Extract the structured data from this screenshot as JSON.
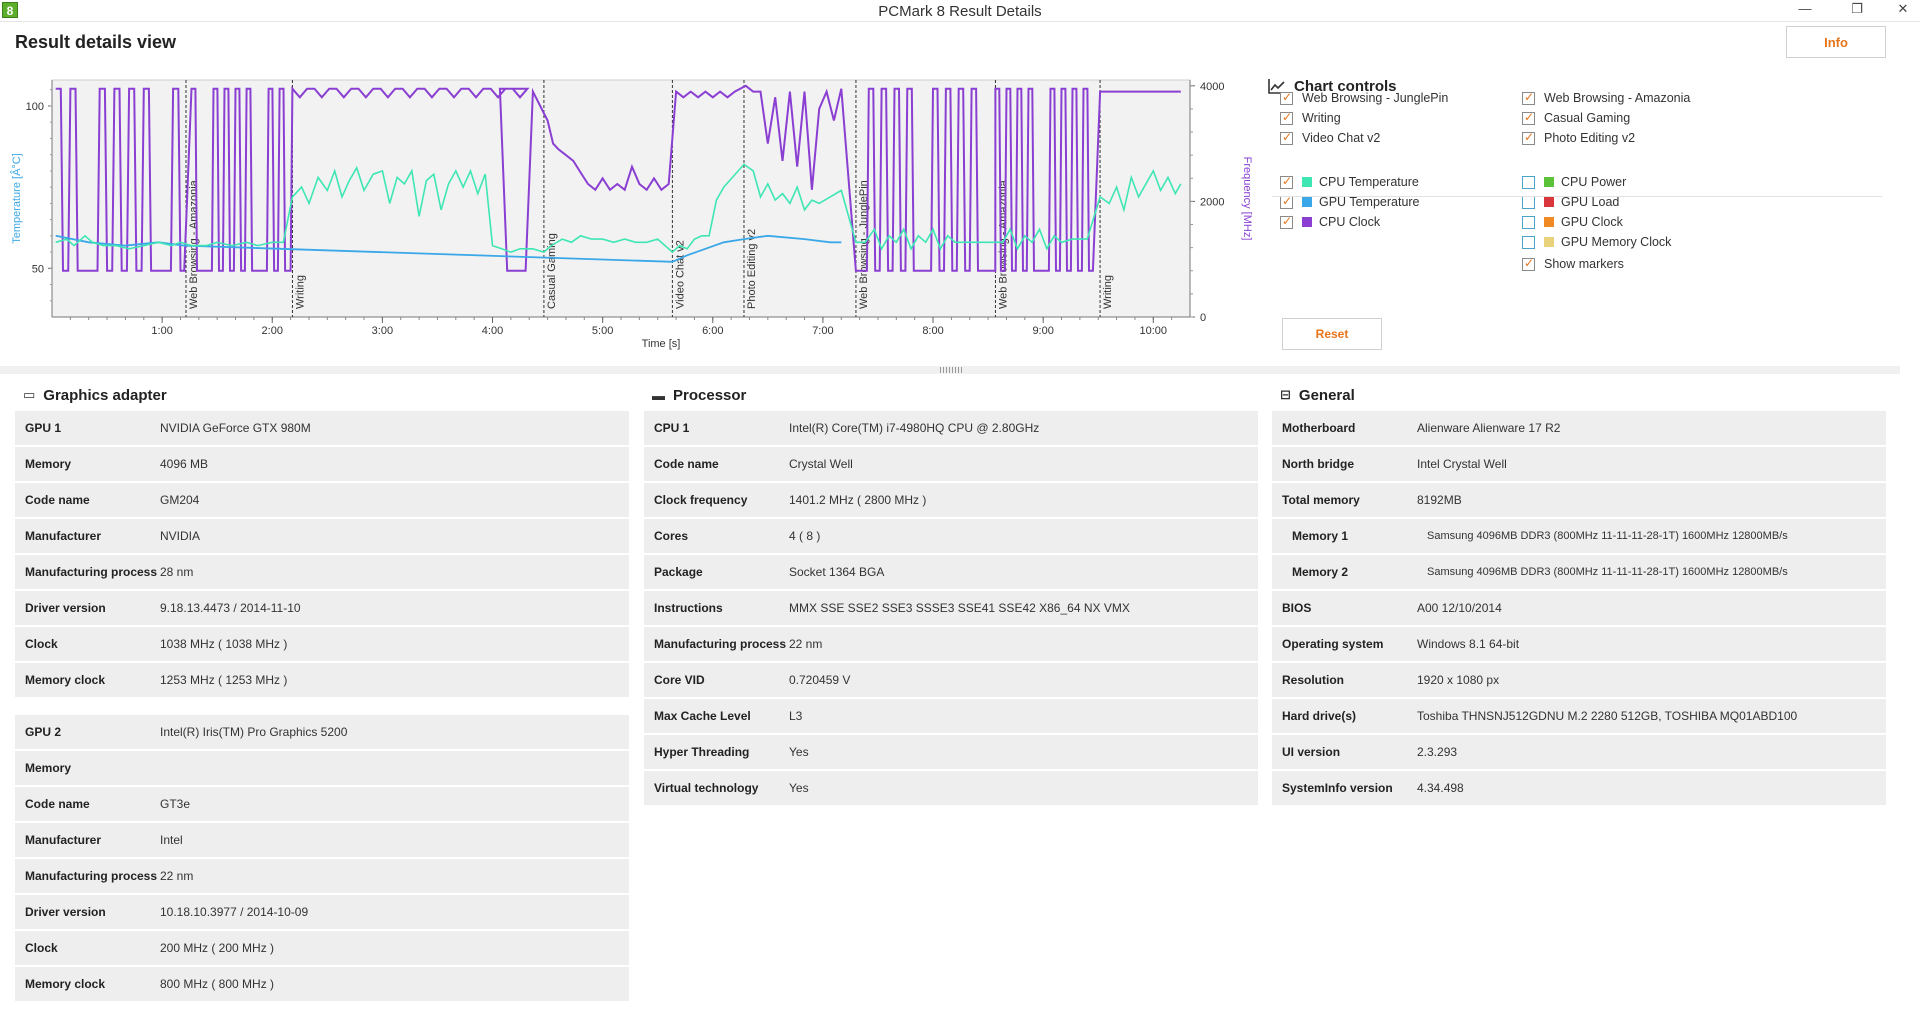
{
  "window": {
    "title": "PCMark 8 Result Details",
    "app_icon": "8"
  },
  "page_title": "Result details view",
  "info_button": "Info",
  "chart_data": {
    "type": "line",
    "xlabel": "Time [s]",
    "ylabel_left": "Temperature [Â°C]",
    "ylabel_right": "Frequency [MHz]",
    "x_ticks": [
      "1:00",
      "2:00",
      "3:00",
      "4:00",
      "5:00",
      "6:00",
      "7:00",
      "8:00",
      "9:00",
      "10:00"
    ],
    "y_left_ticks": [
      "50",
      "100"
    ],
    "y_right_ticks": [
      "0",
      "2000",
      "4000"
    ],
    "xlim_seconds": [
      0,
      620
    ],
    "ylim_left": [
      35,
      108
    ],
    "ylim_right": [
      0,
      4100
    ],
    "segments": [
      {
        "name": "Web Browsing - Amazonia",
        "start": 73
      },
      {
        "name": "Writing",
        "start": 131
      },
      {
        "name": "Casual Gaming",
        "start": 268
      },
      {
        "name": "Video Chat v2",
        "start": 338
      },
      {
        "name": "Photo Editing v2",
        "start": 377
      },
      {
        "name": "Web Browsing - JunglePin",
        "start": 438
      },
      {
        "name": "Web Browsing - Amazonia",
        "start": 514
      },
      {
        "name": "Writing",
        "start": 571
      }
    ],
    "series": [
      {
        "name": "CPU Temperature",
        "color": "#3ee6b4",
        "points": [
          [
            2,
            58
          ],
          [
            8,
            59
          ],
          [
            12,
            57
          ],
          [
            18,
            60
          ],
          [
            22,
            58
          ],
          [
            28,
            57
          ],
          [
            35,
            57
          ],
          [
            42,
            56
          ],
          [
            50,
            57
          ],
          [
            58,
            58
          ],
          [
            65,
            57
          ],
          [
            70,
            58
          ],
          [
            76,
            57
          ],
          [
            84,
            57
          ],
          [
            90,
            58
          ],
          [
            98,
            57
          ],
          [
            106,
            58
          ],
          [
            112,
            57
          ],
          [
            120,
            58
          ],
          [
            126,
            58
          ],
          [
            131,
            72
          ],
          [
            136,
            75
          ],
          [
            140,
            70
          ],
          [
            145,
            78
          ],
          [
            150,
            74
          ],
          [
            154,
            80
          ],
          [
            158,
            72
          ],
          [
            162,
            77
          ],
          [
            166,
            81
          ],
          [
            170,
            74
          ],
          [
            175,
            79
          ],
          [
            180,
            80
          ],
          [
            184,
            70
          ],
          [
            188,
            78
          ],
          [
            192,
            76
          ],
          [
            196,
            80
          ],
          [
            200,
            66
          ],
          [
            204,
            77
          ],
          [
            208,
            79
          ],
          [
            212,
            68
          ],
          [
            216,
            76
          ],
          [
            220,
            80
          ],
          [
            224,
            75
          ],
          [
            228,
            80
          ],
          [
            232,
            73
          ],
          [
            236,
            79
          ],
          [
            240,
            57
          ],
          [
            245,
            56
          ],
          [
            250,
            55
          ],
          [
            255,
            56
          ],
          [
            262,
            56
          ],
          [
            268,
            55
          ],
          [
            272,
            57
          ],
          [
            278,
            59
          ],
          [
            283,
            58
          ],
          [
            288,
            60
          ],
          [
            294,
            59
          ],
          [
            300,
            59
          ],
          [
            306,
            58
          ],
          [
            312,
            59
          ],
          [
            318,
            58
          ],
          [
            324,
            58
          ],
          [
            330,
            59
          ],
          [
            338,
            55
          ],
          [
            342,
            57
          ],
          [
            346,
            56
          ],
          [
            350,
            59
          ],
          [
            354,
            60
          ],
          [
            358,
            60
          ],
          [
            362,
            71
          ],
          [
            366,
            75
          ],
          [
            377,
            82
          ],
          [
            382,
            80
          ],
          [
            386,
            72
          ],
          [
            390,
            76
          ],
          [
            394,
            71
          ],
          [
            398,
            73
          ],
          [
            402,
            70
          ],
          [
            406,
            75
          ],
          [
            410,
            68
          ],
          [
            414,
            71
          ],
          [
            418,
            70
          ],
          [
            424,
            72
          ],
          [
            430,
            74
          ],
          [
            438,
            58
          ],
          [
            443,
            58
          ],
          [
            448,
            62
          ],
          [
            452,
            56
          ],
          [
            456,
            60
          ],
          [
            460,
            58
          ],
          [
            464,
            62
          ],
          [
            468,
            56
          ],
          [
            472,
            60
          ],
          [
            476,
            58
          ],
          [
            480,
            62
          ],
          [
            484,
            56
          ],
          [
            488,
            60
          ],
          [
            492,
            58
          ],
          [
            500,
            58
          ],
          [
            508,
            58
          ],
          [
            514,
            58
          ],
          [
            518,
            58
          ],
          [
            522,
            62
          ],
          [
            526,
            56
          ],
          [
            530,
            60
          ],
          [
            534,
            58
          ],
          [
            538,
            62
          ],
          [
            542,
            56
          ],
          [
            546,
            60
          ],
          [
            550,
            58
          ],
          [
            556,
            59
          ],
          [
            564,
            59
          ],
          [
            571,
            72
          ],
          [
            576,
            70
          ],
          [
            580,
            75
          ],
          [
            584,
            68
          ],
          [
            588,
            78
          ],
          [
            592,
            72
          ],
          [
            596,
            76
          ],
          [
            600,
            80
          ],
          [
            604,
            74
          ],
          [
            608,
            78
          ],
          [
            612,
            73
          ],
          [
            615,
            76
          ]
        ]
      },
      {
        "name": "GPU Temperature",
        "color": "#3aa8e8",
        "points": [
          [
            2,
            60
          ],
          [
            20,
            58
          ],
          [
            40,
            57
          ],
          [
            58,
            58
          ],
          [
            72,
            57
          ],
          [
            338,
            52
          ],
          [
            346,
            54
          ],
          [
            356,
            56
          ],
          [
            366,
            58
          ],
          [
            377,
            59
          ],
          [
            390,
            60
          ],
          [
            410,
            59
          ],
          [
            424,
            58
          ],
          [
            430,
            58
          ]
        ]
      },
      {
        "name": "CPU Clock",
        "color": "#8a3fd2",
        "pattern": "oscillates between roughly 800 MHz and 3900 MHz during browsing, about 3900 MHz during Writing, 1900-3400 MHz during Casual Gaming"
      }
    ]
  },
  "controls": {
    "title": "Chart controls",
    "workloads": [
      {
        "label": "Web Browsing - JunglePin",
        "checked": true
      },
      {
        "label": "Web Browsing - Amazonia",
        "checked": true
      },
      {
        "label": "Writing",
        "checked": true
      },
      {
        "label": "Casual Gaming",
        "checked": true
      },
      {
        "label": "Video Chat v2",
        "checked": true
      },
      {
        "label": "Photo Editing v2",
        "checked": true
      }
    ],
    "metrics": [
      {
        "label": "CPU Temperature",
        "color": "#3ee6b4",
        "checked": true
      },
      {
        "label": "CPU Power",
        "color": "#5cc23a",
        "checked": false
      },
      {
        "label": "GPU Temperature",
        "color": "#3aa8e8",
        "checked": true
      },
      {
        "label": "GPU Load",
        "color": "#d9363e",
        "checked": false
      },
      {
        "label": "CPU Clock",
        "color": "#8a3fd2",
        "checked": true
      },
      {
        "label": "GPU Clock",
        "color": "#f08a24",
        "checked": false
      },
      {
        "label": "GPU Memory Clock",
        "color": "#e8d37c",
        "checked": false
      },
      {
        "label": "Show markers",
        "checked": true
      }
    ],
    "reset": "Reset"
  },
  "graphics": {
    "title": "Graphics adapter",
    "gpu1": [
      {
        "k": "GPU 1",
        "v": "NVIDIA GeForce GTX 980M"
      },
      {
        "k": "Memory",
        "v": "4096 MB"
      },
      {
        "k": "Code name",
        "v": "GM204"
      },
      {
        "k": "Manufacturer",
        "v": "NVIDIA"
      },
      {
        "k": "Manufacturing process",
        "v": "28 nm"
      },
      {
        "k": "Driver version",
        "v": "9.18.13.4473 / 2014-11-10"
      },
      {
        "k": "Clock",
        "v": "1038 MHz ( 1038 MHz )"
      },
      {
        "k": "Memory clock",
        "v": "1253 MHz ( 1253 MHz )"
      }
    ],
    "gpu2": [
      {
        "k": "GPU 2",
        "v": "Intel(R) Iris(TM) Pro Graphics 5200"
      },
      {
        "k": "Memory",
        "v": ""
      },
      {
        "k": "Code name",
        "v": "GT3e"
      },
      {
        "k": "Manufacturer",
        "v": "Intel"
      },
      {
        "k": "Manufacturing process",
        "v": "22 nm"
      },
      {
        "k": "Driver version",
        "v": "10.18.10.3977 / 2014-10-09"
      },
      {
        "k": "Clock",
        "v": "200 MHz ( 200 MHz )"
      },
      {
        "k": "Memory clock",
        "v": "800 MHz ( 800 MHz )"
      }
    ]
  },
  "processor": {
    "title": "Processor",
    "rows": [
      {
        "k": "CPU 1",
        "v": "Intel(R) Core(TM) i7-4980HQ CPU @ 2.80GHz"
      },
      {
        "k": "Code name",
        "v": "Crystal Well"
      },
      {
        "k": "Clock frequency",
        "v": "1401.2 MHz ( 2800 MHz )"
      },
      {
        "k": "Cores",
        "v": "4 ( 8 )"
      },
      {
        "k": "Package",
        "v": "Socket 1364 BGA"
      },
      {
        "k": "Instructions",
        "v": "MMX SSE SSE2 SSE3 SSSE3 SSE41 SSE42 X86_64 NX VMX"
      },
      {
        "k": "Manufacturing process",
        "v": "22 nm"
      },
      {
        "k": "Core VID",
        "v": "0.720459 V"
      },
      {
        "k": "Max Cache Level",
        "v": "L3"
      },
      {
        "k": "Hyper Threading",
        "v": "Yes"
      },
      {
        "k": "Virtual technology",
        "v": "Yes"
      }
    ]
  },
  "general": {
    "title": "General",
    "rows": [
      {
        "k": "Motherboard",
        "v": "Alienware Alienware 17 R2"
      },
      {
        "k": "North bridge",
        "v": "Intel Crystal Well"
      },
      {
        "k": "Total memory",
        "v": "8192MB"
      },
      {
        "k": "Memory 1",
        "v": "Samsung 4096MB  DDR3 (800MHz 11-11-11-28-1T) 1600MHz 12800MB/s",
        "indent": true
      },
      {
        "k": "Memory 2",
        "v": "Samsung 4096MB  DDR3 (800MHz 11-11-11-28-1T) 1600MHz 12800MB/s",
        "indent": true
      },
      {
        "k": "BIOS",
        "v": "A00 12/10/2014"
      },
      {
        "k": "Operating system",
        "v": "Windows 8.1 64-bit"
      },
      {
        "k": "Resolution",
        "v": "1920 x 1080 px"
      },
      {
        "k": "Hard drive(s)",
        "v": "Toshiba THNSNJ512GDNU M.2 2280 512GB, TOSHIBA MQ01ABD100"
      },
      {
        "k": "UI version",
        "v": "2.3.293"
      },
      {
        "k": "SystemInfo version",
        "v": "4.34.498"
      }
    ]
  }
}
